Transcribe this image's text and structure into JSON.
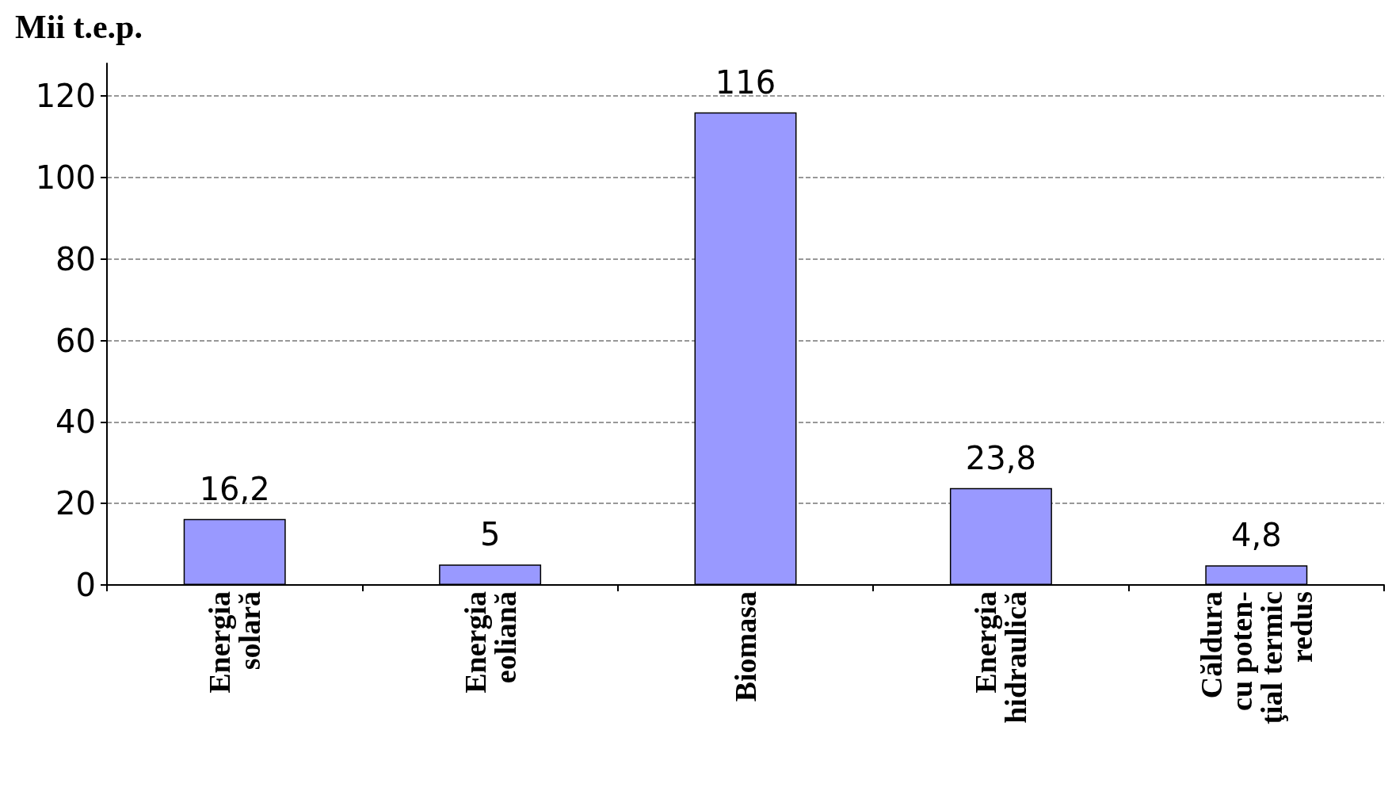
{
  "chart_data": {
    "type": "bar",
    "ylabel": "Mii t.e.p.",
    "categories": [
      "Energia\nsolară",
      "Energia\neoliană",
      "Biomasa",
      "Energia\nhidraulică",
      "Căldura\ncu poten-\nţial termic\nredus"
    ],
    "values": [
      16.2,
      5,
      116,
      23.8,
      4.8
    ],
    "color": "#9999ff",
    "value_labels": [
      "16,2",
      "5",
      "116",
      "23,8",
      "4,8"
    ],
    "ylim": [
      0,
      128
    ],
    "yticks": [
      0,
      20,
      40,
      60,
      80,
      100,
      120
    ],
    "grid": "y"
  }
}
